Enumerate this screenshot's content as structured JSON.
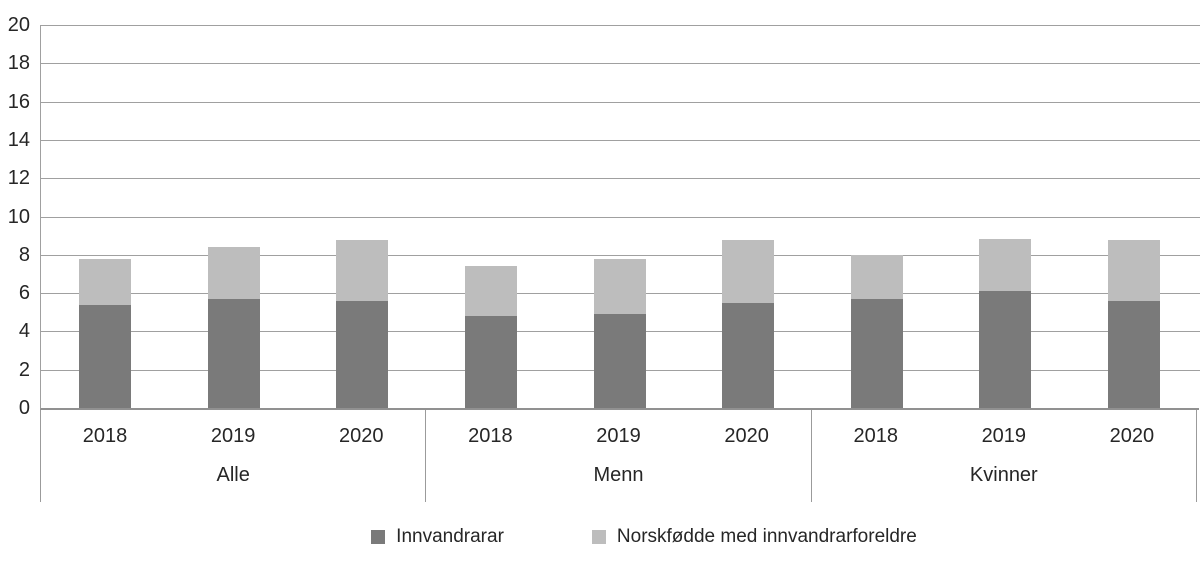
{
  "chart_data": {
    "type": "bar",
    "stacked": true,
    "title": "",
    "xlabel": "",
    "ylabel": "",
    "group_labels": [
      "Alle",
      "Menn",
      "Kvinner"
    ],
    "x_labels": [
      "2018",
      "2019",
      "2020",
      "2018",
      "2019",
      "2020",
      "2018",
      "2019",
      "2020"
    ],
    "series": [
      {
        "name": "Innvandrarar",
        "color": "#7a7a7a",
        "values": [
          5.4,
          5.7,
          5.6,
          4.8,
          4.9,
          5.5,
          5.7,
          6.1,
          5.6
        ]
      },
      {
        "name": "Norskfødde med innvandrarforeldre",
        "color": "#bdbdbd",
        "values": [
          2.4,
          2.7,
          3.2,
          2.6,
          2.9,
          3.3,
          2.3,
          2.7,
          3.2
        ]
      }
    ],
    "stacked_totals": [
      7.8,
      8.4,
      8.8,
      7.4,
      7.8,
      8.8,
      8.0,
      8.8,
      8.8
    ],
    "ylim": [
      0,
      20
    ],
    "yticks": [
      0,
      2,
      4,
      6,
      8,
      10,
      12,
      14,
      16,
      18,
      20
    ],
    "grid": true,
    "legend_position": "bottom"
  },
  "colors": {
    "gridline": "#a0a0a0",
    "axis_line": "#919191",
    "text": "#262626",
    "background": "#ffffff"
  }
}
